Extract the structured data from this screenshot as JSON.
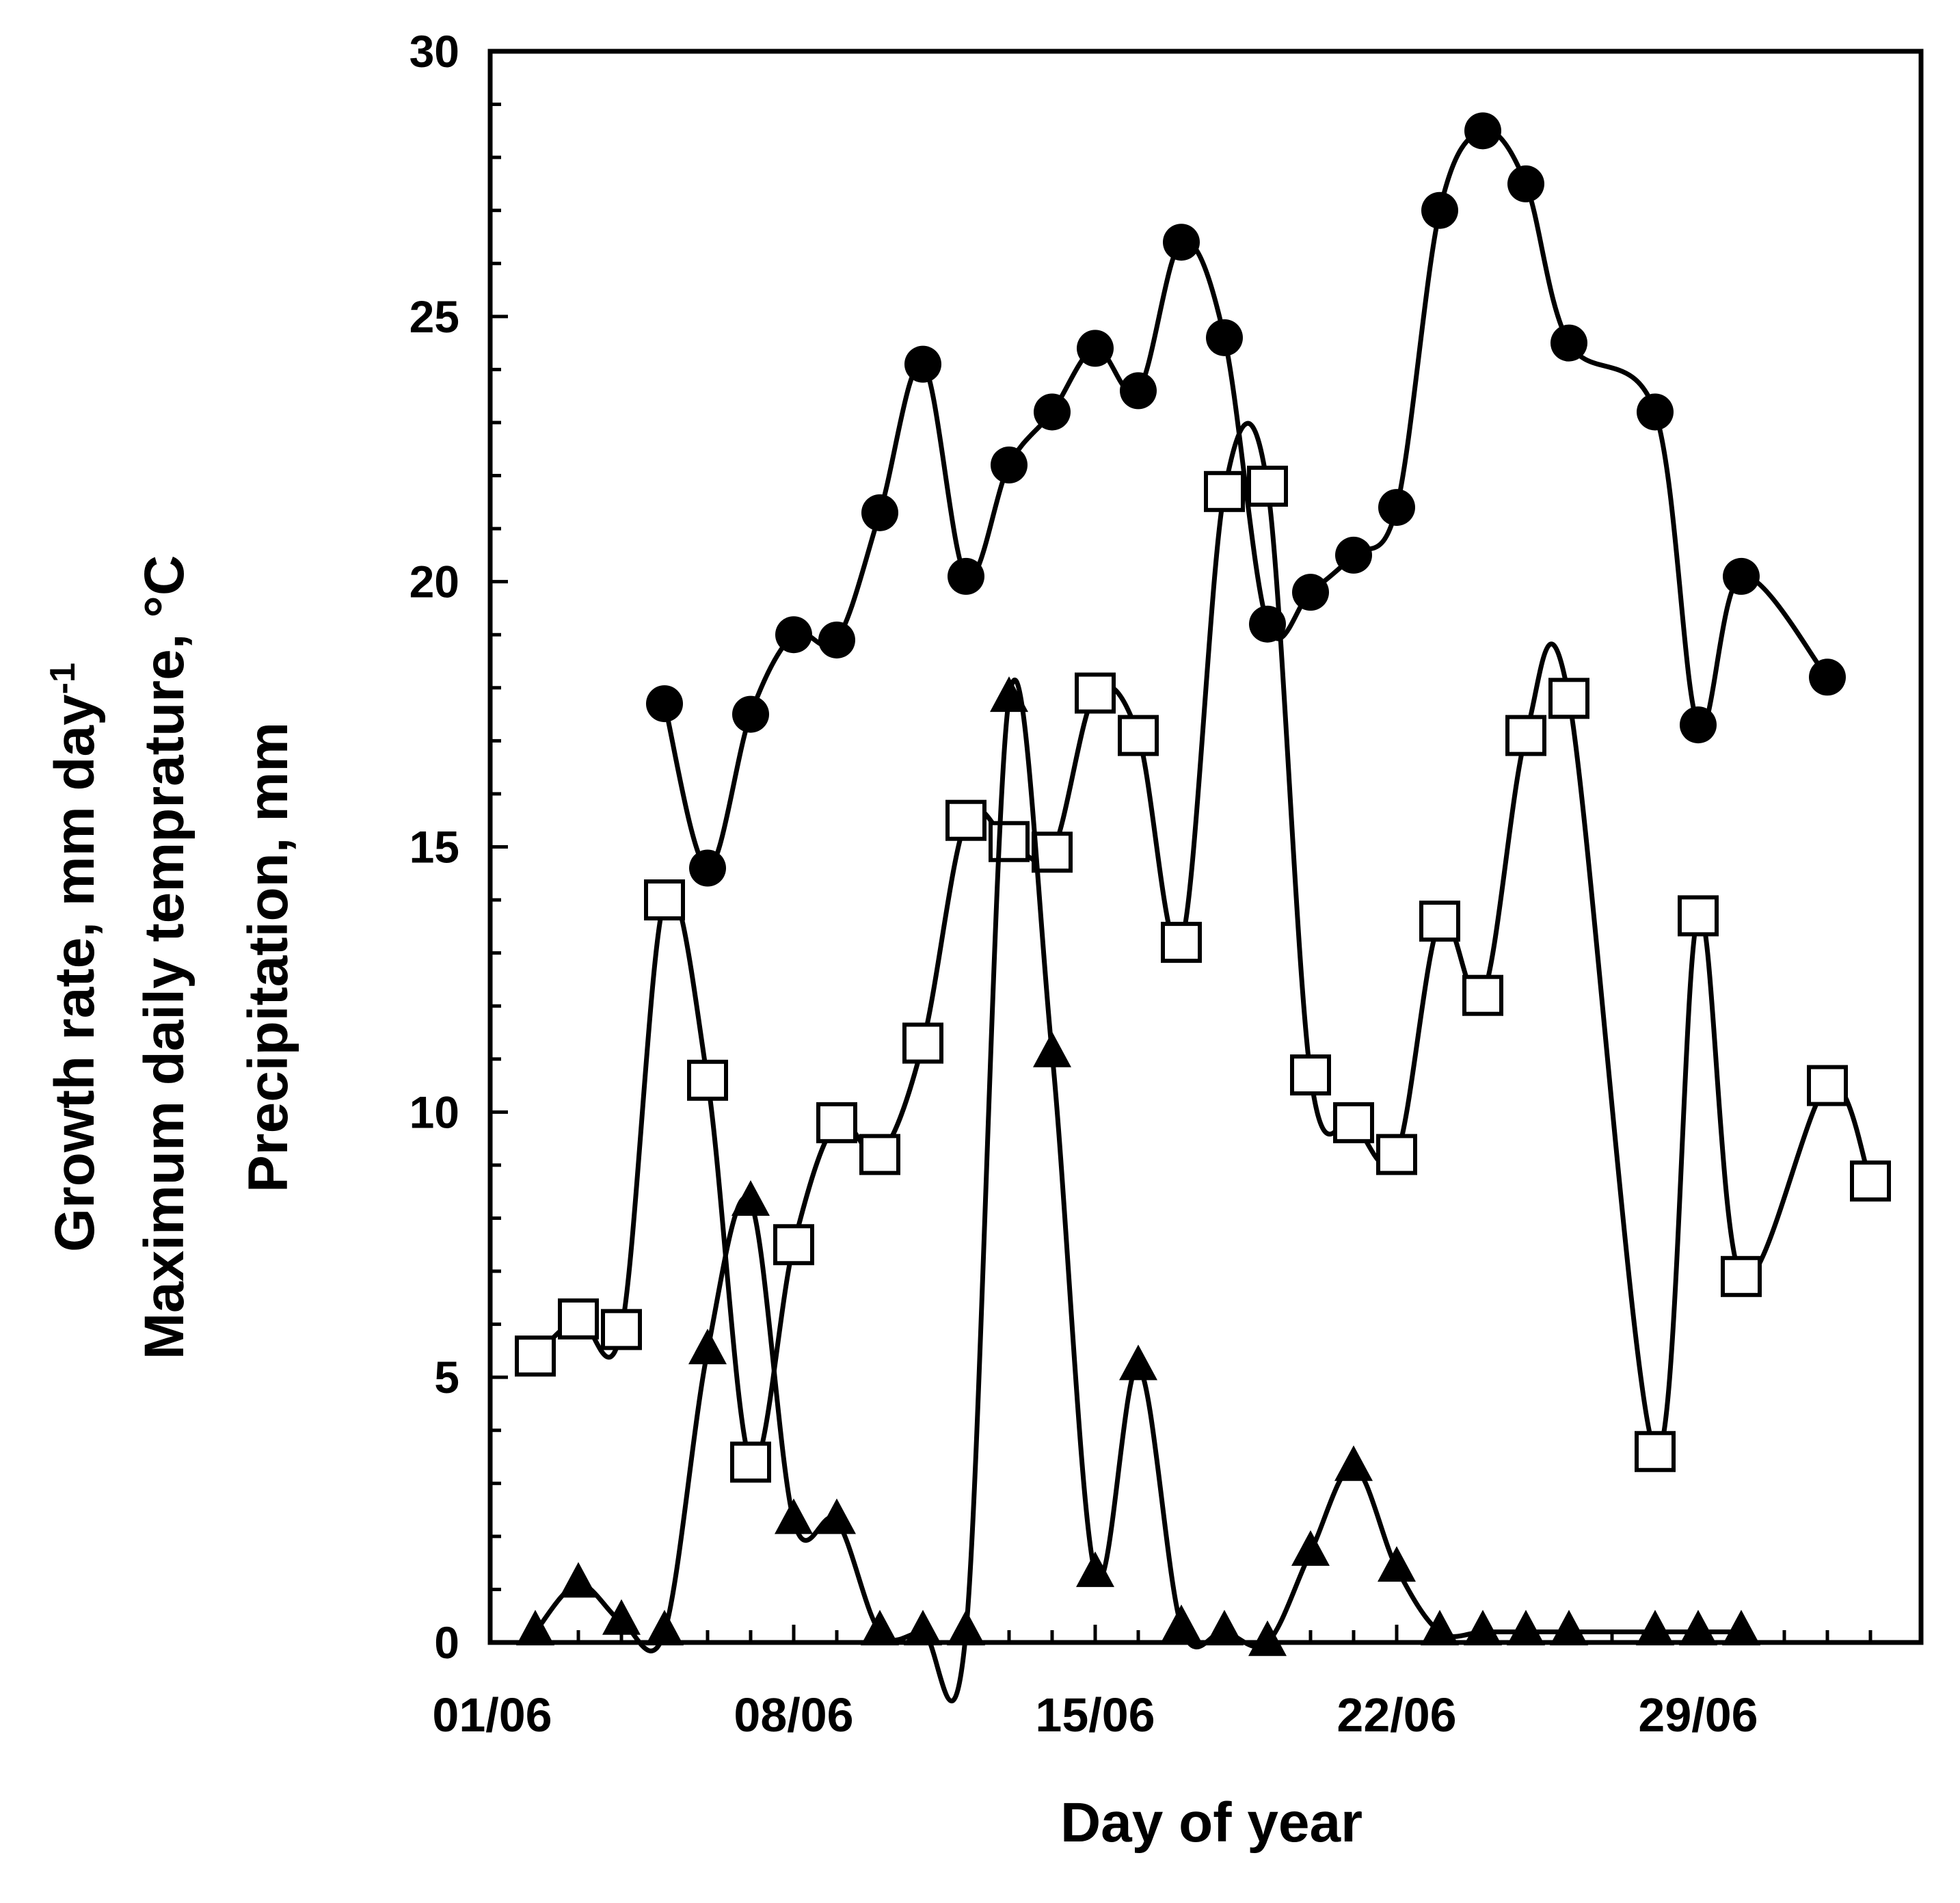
{
  "chart_data": {
    "type": "line",
    "title": "",
    "xlabel": "Day of year",
    "ylabel_lines": [
      {
        "text": "Growth rate, mm day",
        "superscript": "-1"
      },
      {
        "text": "Maximum daily temprature, °C",
        "superscript": ""
      },
      {
        "text": "Precipitation, mm",
        "superscript": ""
      }
    ],
    "xlim": [
      0,
      32
    ],
    "ylim": [
      0,
      30
    ],
    "x_ticks": [
      {
        "x": 0,
        "label": "01/06"
      },
      {
        "x": 7,
        "label": "08/06"
      },
      {
        "x": 14,
        "label": "15/06"
      },
      {
        "x": 21,
        "label": "22/06"
      },
      {
        "x": 28,
        "label": "29/06"
      }
    ],
    "y_ticks": [
      0,
      5,
      10,
      15,
      20,
      25,
      30
    ],
    "y_minor_step": 1,
    "x_minor_step": 1,
    "series": [
      {
        "name": "Maximum daily temperature",
        "marker": "filled-circle",
        "points": [
          [
            4,
            17.7
          ],
          [
            5,
            14.6
          ],
          [
            6,
            17.5
          ],
          [
            7,
            19.0
          ],
          [
            8,
            18.9
          ],
          [
            9,
            21.3
          ],
          [
            10,
            24.1
          ],
          [
            11,
            20.1
          ],
          [
            12,
            22.2
          ],
          [
            13,
            23.2
          ],
          [
            14,
            24.4
          ],
          [
            15,
            23.6
          ],
          [
            16,
            26.4
          ],
          [
            17,
            24.6
          ],
          [
            18,
            19.2
          ],
          [
            19,
            19.8
          ],
          [
            20,
            20.5
          ],
          [
            21,
            21.4
          ],
          [
            22,
            27.0
          ],
          [
            23,
            28.5
          ],
          [
            24,
            27.5
          ],
          [
            25,
            24.5
          ],
          [
            27,
            23.2
          ],
          [
            28,
            17.3
          ],
          [
            29,
            20.1
          ],
          [
            31,
            18.2
          ]
        ]
      },
      {
        "name": "Growth rate",
        "marker": "open-square",
        "points": [
          [
            1,
            5.4
          ],
          [
            2,
            6.1
          ],
          [
            3,
            5.9
          ],
          [
            4,
            14.0
          ],
          [
            5,
            10.6
          ],
          [
            6,
            3.4
          ],
          [
            7,
            7.5
          ],
          [
            8,
            9.8
          ],
          [
            9,
            9.2
          ],
          [
            10,
            11.3
          ],
          [
            11,
            15.5
          ],
          [
            12,
            15.1
          ],
          [
            13,
            14.9
          ],
          [
            14,
            17.9
          ],
          [
            15,
            17.1
          ],
          [
            16,
            13.2
          ],
          [
            17,
            21.7
          ],
          [
            18,
            21.8
          ],
          [
            19,
            10.7
          ],
          [
            20,
            9.8
          ],
          [
            21,
            9.2
          ],
          [
            22,
            13.6
          ],
          [
            23,
            12.2
          ],
          [
            24,
            17.1
          ],
          [
            25,
            17.8
          ],
          [
            27,
            3.6
          ],
          [
            28,
            13.7
          ],
          [
            29,
            6.9
          ],
          [
            31,
            10.5
          ],
          [
            32,
            8.7
          ]
        ]
      },
      {
        "name": "Precipitation",
        "marker": "filled-triangle",
        "points": [
          [
            1,
            0.2
          ],
          [
            2,
            1.1
          ],
          [
            3,
            0.4
          ],
          [
            4,
            0.2
          ],
          [
            5,
            5.5
          ],
          [
            6,
            8.3
          ],
          [
            7,
            2.3
          ],
          [
            8,
            2.3
          ],
          [
            9,
            0.2
          ],
          [
            10,
            0.2
          ],
          [
            11,
            0.2
          ],
          [
            12,
            17.8
          ],
          [
            13,
            11.1
          ],
          [
            14,
            1.3
          ],
          [
            15,
            5.2
          ],
          [
            16,
            0.3
          ],
          [
            17,
            0.2
          ],
          [
            18,
            0.0
          ],
          [
            19,
            1.7
          ],
          [
            20,
            3.3
          ],
          [
            21,
            1.4
          ],
          [
            22,
            0.2
          ],
          [
            23,
            0.2
          ],
          [
            24,
            0.2
          ],
          [
            25,
            0.2
          ],
          [
            27,
            0.2
          ],
          [
            28,
            0.2
          ],
          [
            29,
            0.2
          ]
        ]
      }
    ]
  }
}
